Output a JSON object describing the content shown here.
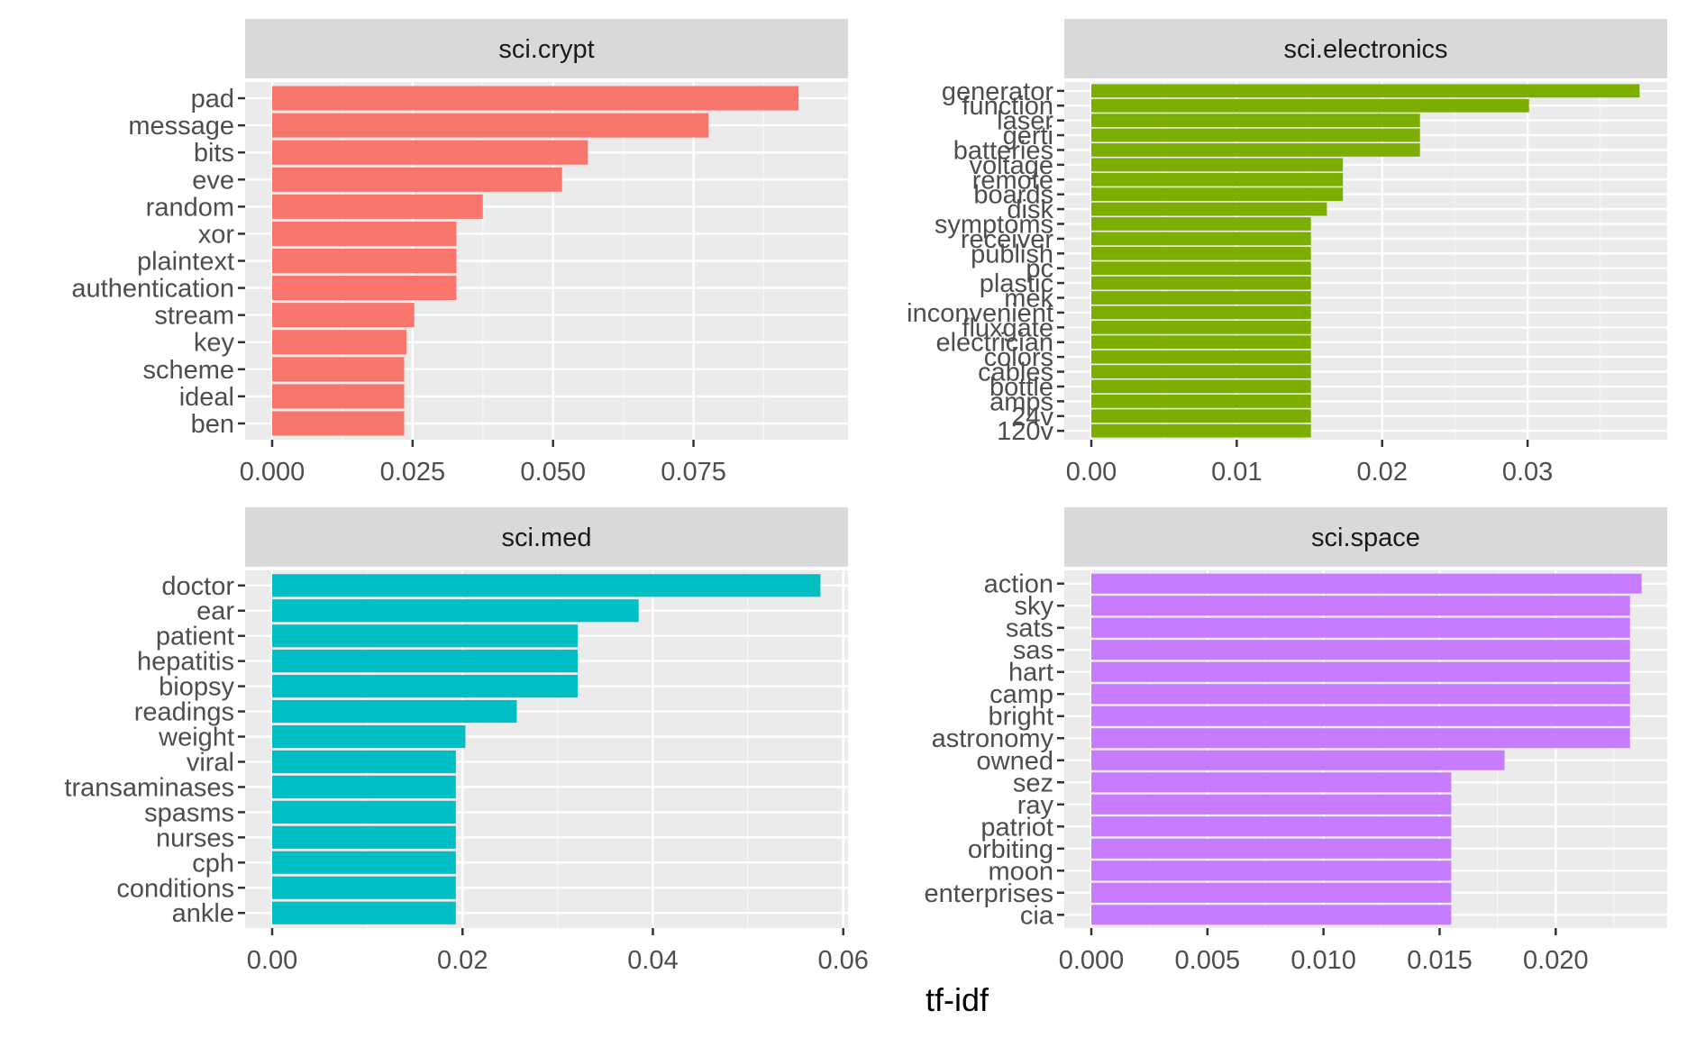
{
  "chart_data": {
    "type": "bar",
    "orientation": "horizontal",
    "layout": "facet-grid 2x2, free scales",
    "xlabel": "tf-idf",
    "grid": true,
    "legend": "none",
    "facets": [
      {
        "title": "sci.crypt",
        "color": "#F8766D",
        "xlim": [
          0,
          0.1025
        ],
        "xticks": [
          {
            "value": 0,
            "label": "0.000"
          },
          {
            "value": 0.025,
            "label": "0.025"
          },
          {
            "value": 0.05,
            "label": "0.050"
          },
          {
            "value": 0.075,
            "label": "0.075"
          }
        ],
        "categories": [
          "pad",
          "message",
          "bits",
          "eve",
          "random",
          "xor",
          "plaintext",
          "authentication",
          "stream",
          "key",
          "scheme",
          "ideal",
          "ben"
        ],
        "values": [
          0.0937,
          0.0777,
          0.0562,
          0.0516,
          0.0375,
          0.0328,
          0.0328,
          0.0328,
          0.0253,
          0.0239,
          0.0235,
          0.0235,
          0.0235
        ]
      },
      {
        "title": "sci.electronics",
        "color": "#7CAE00",
        "xlim": [
          0,
          0.0396
        ],
        "xticks": [
          {
            "value": 0,
            "label": "0.00"
          },
          {
            "value": 0.01,
            "label": "0.01"
          },
          {
            "value": 0.02,
            "label": "0.02"
          },
          {
            "value": 0.03,
            "label": "0.03"
          }
        ],
        "categories": [
          "generator",
          "function",
          "laser",
          "gerti",
          "batteries",
          "voltage",
          "remote",
          "boards",
          "disk",
          "symptoms",
          "receiver",
          "publish",
          "pc",
          "plastic",
          "mek",
          "inconvenient",
          "fluxgate",
          "electrician",
          "colors",
          "cables",
          "bottle",
          "amps",
          "24v",
          "120v"
        ],
        "values": [
          0.0377,
          0.0301,
          0.0226,
          0.0226,
          0.0226,
          0.0173,
          0.0173,
          0.0173,
          0.0162,
          0.0151,
          0.0151,
          0.0151,
          0.0151,
          0.0151,
          0.0151,
          0.0151,
          0.0151,
          0.0151,
          0.0151,
          0.0151,
          0.0151,
          0.0151,
          0.0151,
          0.0151
        ]
      },
      {
        "title": "sci.med",
        "color": "#00BFC4",
        "xlim": [
          0,
          0.0605
        ],
        "xticks": [
          {
            "value": 0,
            "label": "0.00"
          },
          {
            "value": 0.02,
            "label": "0.02"
          },
          {
            "value": 0.04,
            "label": "0.04"
          },
          {
            "value": 0.06,
            "label": "0.06"
          }
        ],
        "categories": [
          "doctor",
          "ear",
          "patient",
          "hepatitis",
          "biopsy",
          "readings",
          "weight",
          "viral",
          "transaminases",
          "spasms",
          "nurses",
          "cph",
          "conditions",
          "ankle"
        ],
        "values": [
          0.0576,
          0.0385,
          0.0321,
          0.0321,
          0.0321,
          0.0257,
          0.0203,
          0.0193,
          0.0193,
          0.0193,
          0.0193,
          0.0193,
          0.0193,
          0.0193
        ]
      },
      {
        "title": "sci.space",
        "color": "#C77CFF",
        "xlim": [
          0,
          0.0248
        ],
        "xticks": [
          {
            "value": 0,
            "label": "0.000"
          },
          {
            "value": 0.005,
            "label": "0.005"
          },
          {
            "value": 0.01,
            "label": "0.010"
          },
          {
            "value": 0.015,
            "label": "0.015"
          },
          {
            "value": 0.02,
            "label": "0.020"
          }
        ],
        "categories": [
          "action",
          "sky",
          "sats",
          "sas",
          "hart",
          "camp",
          "bright",
          "astronomy",
          "owned",
          "sez",
          "ray",
          "patriot",
          "orbiting",
          "moon",
          "enterprises",
          "cia"
        ],
        "values": [
          0.0237,
          0.0232,
          0.0232,
          0.0232,
          0.0232,
          0.0232,
          0.0232,
          0.0232,
          0.0178,
          0.0155,
          0.0155,
          0.0155,
          0.0155,
          0.0155,
          0.0155,
          0.0155
        ]
      }
    ]
  }
}
